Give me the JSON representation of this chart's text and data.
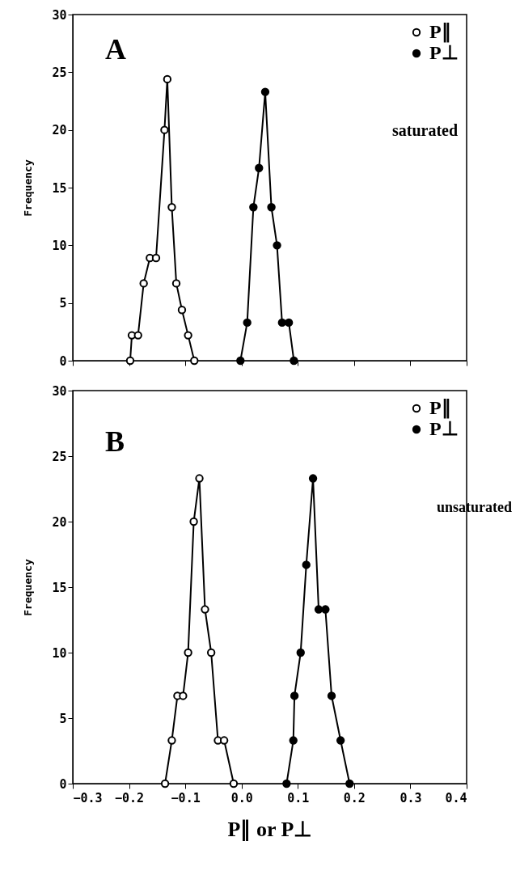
{
  "chart_data": [
    {
      "type": "line",
      "ylabel": "Frequency",
      "xlim": [
        -0.3,
        0.4
      ],
      "xticks": [
        -0.3,
        -0.2,
        -0.1,
        0,
        0.1,
        0.2,
        0.3,
        0.4
      ],
      "ylim": [
        0,
        30
      ],
      "yticks": [
        0,
        5,
        10,
        15,
        20,
        25,
        30
      ],
      "tick_labels": "y",
      "marker": "circle",
      "legend": "top right",
      "grid": false,
      "annotations": [
        "A",
        "saturated"
      ],
      "series": [
        {
          "name": "P∥",
          "color": "#000000",
          "x": [
            -0.198,
            -0.195,
            -0.184,
            -0.174,
            -0.163,
            -0.152,
            -0.137,
            -0.132,
            -0.124,
            -0.116,
            -0.106,
            -0.095,
            -0.084
          ],
          "values": [
            0,
            2.2,
            2.2,
            6.7,
            8.9,
            8.9,
            20,
            24.4,
            13.3,
            6.7,
            4.4,
            2.2,
            0
          ]
        },
        {
          "name": "P⊥",
          "color": "#000000",
          "x": [
            -0.002,
            0.01,
            0.021,
            0.031,
            0.042,
            0.053,
            0.063,
            0.072,
            0.084,
            0.093
          ],
          "values": [
            0,
            3.3,
            13.3,
            16.7,
            23.3,
            13.3,
            10,
            3.3,
            3.3,
            0
          ]
        }
      ]
    },
    {
      "type": "line",
      "xlabel": "P∥ or P⊥",
      "ylabel": "Frequency",
      "xlim": [
        -0.3,
        0.4
      ],
      "xticks": [
        -0.3,
        -0.2,
        -0.1,
        {
          "value": 0,
          "label": "0.0"
        },
        0.1,
        0.2,
        0.3,
        0.4
      ],
      "ylim": [
        0,
        30
      ],
      "yticks": [
        0,
        5,
        10,
        15,
        20,
        25,
        30
      ],
      "marker": "circle",
      "legend": "top right",
      "grid": false,
      "annotations": [
        "B",
        "unsaturated"
      ],
      "series": [
        {
          "name": "P∥",
          "color": "#000000",
          "x": [
            -0.136,
            -0.124,
            -0.114,
            -0.104,
            -0.095,
            -0.085,
            -0.075,
            -0.065,
            -0.054,
            -0.042,
            -0.031,
            -0.014
          ],
          "values": [
            0,
            3.3,
            6.7,
            6.7,
            10,
            20,
            23.3,
            13.3,
            10,
            3.3,
            3.3,
            0
          ]
        },
        {
          "name": "P⊥",
          "color": "#000000",
          "x": [
            0.08,
            0.092,
            0.094,
            0.105,
            0.115,
            0.127,
            0.137,
            0.149,
            0.16,
            0.176,
            0.192
          ],
          "values": [
            0,
            3.3,
            6.7,
            10,
            16.7,
            23.3,
            13.3,
            13.3,
            6.7,
            3.3,
            0
          ]
        }
      ]
    }
  ]
}
